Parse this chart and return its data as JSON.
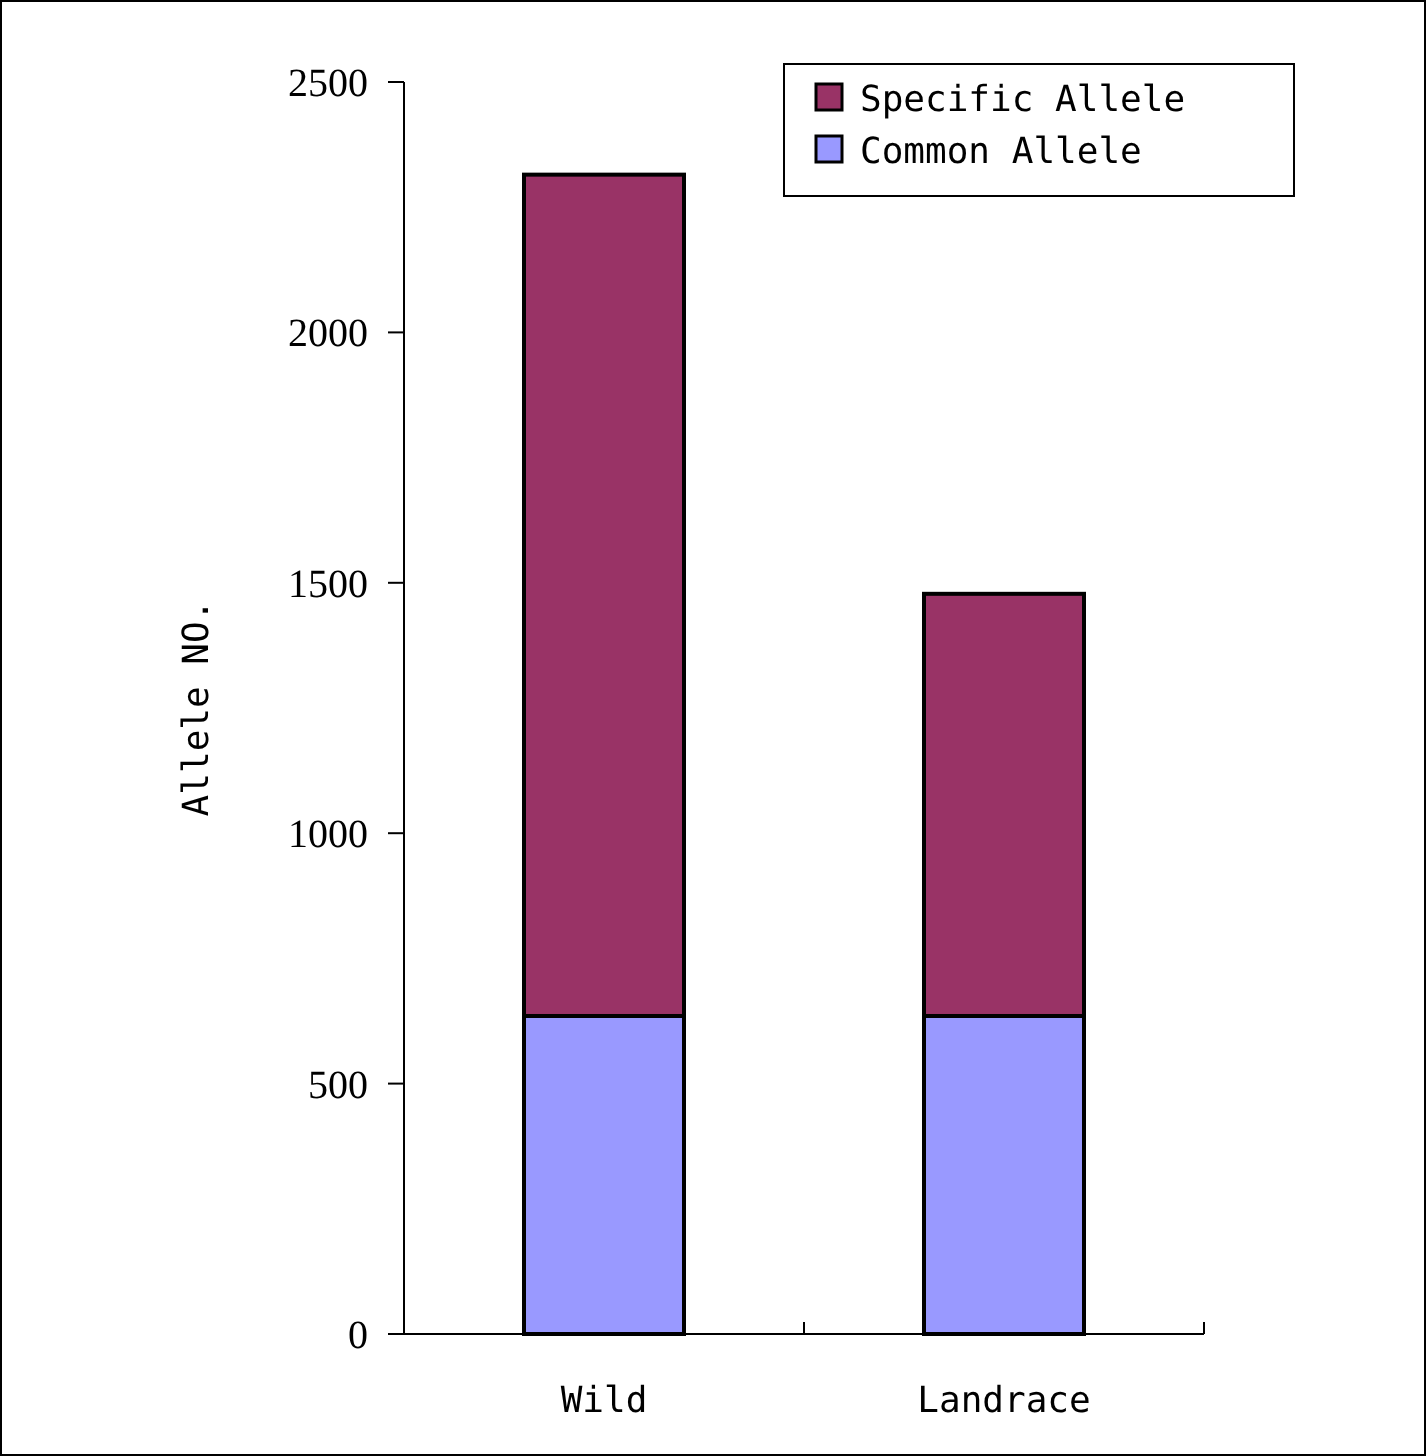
{
  "chart_data": {
    "type": "bar",
    "stacked": true,
    "ylabel": "Allele NO.",
    "categories": [
      "Wild",
      "Landrace"
    ],
    "series": [
      {
        "name": "Common Allele",
        "color": "#9999ff",
        "values": [
          635,
          635
        ]
      },
      {
        "name": "Specific Allele",
        "color": "#993366",
        "values": [
          1680,
          843
        ]
      }
    ],
    "ylim": [
      0,
      2500
    ],
    "yticks": [
      0,
      500,
      1000,
      1500,
      2000,
      2500
    ],
    "grid": false,
    "legend": "top right"
  }
}
